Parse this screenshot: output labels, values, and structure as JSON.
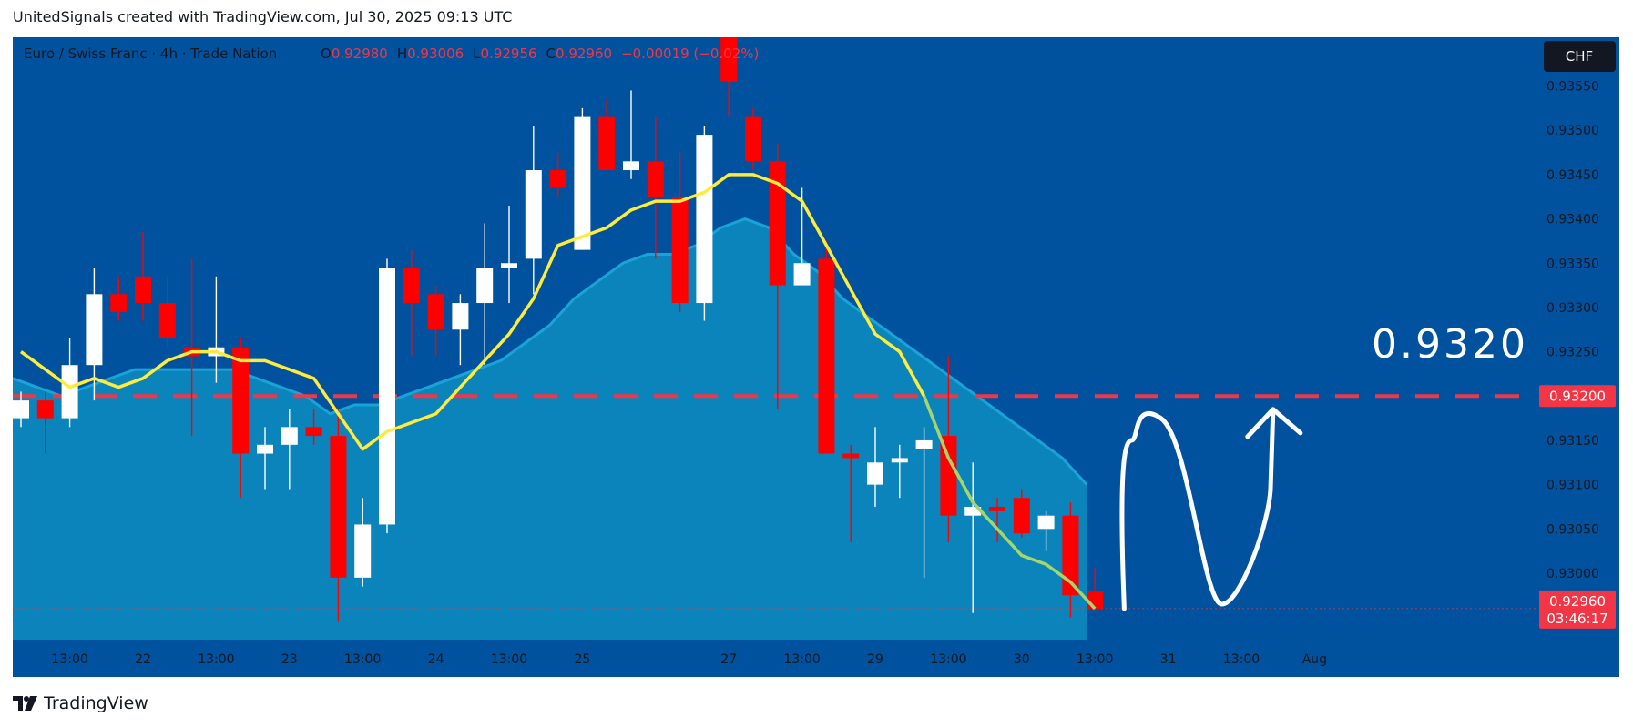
{
  "header": {
    "text": "UnitedSignals created with TradingView.com, Jul 30, 2025 09:13 UTC"
  },
  "footer": {
    "brand": "TradingView",
    "logo_icon": "tradingview-logo-icon"
  },
  "symbol_bar": {
    "title": "Euro / Swiss Franc · 4h · Trade Nation",
    "o_label": "O",
    "o_value": "0.92980",
    "h_label": "H",
    "h_value": "0.93006",
    "l_label": "L",
    "l_value": "0.92956",
    "c_label": "C",
    "c_value": "0.92960",
    "change": "−0.00019 (−0.02%)"
  },
  "currency_badge": "CHF",
  "annotation": {
    "text": "0.9320"
  },
  "price_tags": {
    "level": "0.93200",
    "last": "0.92960",
    "countdown": "03:46:17"
  },
  "colors": {
    "background": "#00529e",
    "up": "#ffffff",
    "down": "#ff0000",
    "ma_fast": "#ffeb3b",
    "ma_fast_tail": "#a5d66b",
    "ma_area": "#0d8cc0",
    "level_line": "#f23645"
  },
  "chart_data": {
    "type": "candlestick",
    "title": "Euro / Swiss Franc · 4h · Trade Nation",
    "y_ticks": [
      0.9355,
      0.935,
      0.9345,
      0.934,
      0.9335,
      0.933,
      0.9325,
      0.932,
      0.9315,
      0.931,
      0.9305,
      0.93
    ],
    "y_tick_labels": [
      "0.93550",
      "0.93500",
      "0.93450",
      "0.93400",
      "0.93350",
      "0.93300",
      "0.93250",
      "0.93200",
      "0.93150",
      "0.93100",
      "0.93050",
      "0.93000"
    ],
    "ylim": [
      0.92925,
      0.93605
    ],
    "x_ticks": [
      {
        "label": "13:00",
        "i": 2
      },
      {
        "label": "22",
        "i": 5
      },
      {
        "label": "13:00",
        "i": 8
      },
      {
        "label": "23",
        "i": 11
      },
      {
        "label": "13:00",
        "i": 14
      },
      {
        "label": "24",
        "i": 17
      },
      {
        "label": "13:00",
        "i": 20
      },
      {
        "label": "25",
        "i": 23
      },
      {
        "label": "27",
        "i": 29
      },
      {
        "label": "13:00",
        "i": 32
      },
      {
        "label": "29",
        "i": 35
      },
      {
        "label": "13:00",
        "i": 38
      },
      {
        "label": "30",
        "i": 41
      },
      {
        "label": "13:00",
        "i": 44
      },
      {
        "label": "31",
        "i": 47
      },
      {
        "label": "13:00",
        "i": 50
      },
      {
        "label": "Aug",
        "i": 53
      }
    ],
    "candles": [
      [
        0.93175,
        0.93205,
        0.93165,
        0.93195
      ],
      [
        0.93195,
        0.93205,
        0.93135,
        0.93175
      ],
      [
        0.93175,
        0.93265,
        0.93165,
        0.93235
      ],
      [
        0.93235,
        0.93345,
        0.93195,
        0.93315
      ],
      [
        0.93315,
        0.93335,
        0.93285,
        0.93295
      ],
      [
        0.93335,
        0.93385,
        0.93285,
        0.93305
      ],
      [
        0.93305,
        0.93335,
        0.93255,
        0.93265
      ],
      [
        0.93255,
        0.93355,
        0.93155,
        0.93245
      ],
      [
        0.93245,
        0.93335,
        0.93215,
        0.93255
      ],
      [
        0.93255,
        0.93265,
        0.93085,
        0.93135
      ],
      [
        0.93135,
        0.93165,
        0.93095,
        0.93145
      ],
      [
        0.93145,
        0.93185,
        0.93095,
        0.93165
      ],
      [
        0.93165,
        0.93185,
        0.93145,
        0.93155
      ],
      [
        0.93155,
        0.93185,
        0.92945,
        0.92995
      ],
      [
        0.92995,
        0.93085,
        0.92985,
        0.93055
      ],
      [
        0.93055,
        0.93355,
        0.93045,
        0.93345
      ],
      [
        0.93345,
        0.93365,
        0.93245,
        0.93305
      ],
      [
        0.93315,
        0.93325,
        0.93245,
        0.93275
      ],
      [
        0.93275,
        0.93315,
        0.93235,
        0.93305
      ],
      [
        0.93305,
        0.93395,
        0.93235,
        0.93345
      ],
      [
        0.93345,
        0.93415,
        0.93305,
        0.9335
      ],
      [
        0.93355,
        0.93505,
        0.93315,
        0.93455
      ],
      [
        0.93455,
        0.93475,
        0.93425,
        0.93435
      ],
      [
        0.93365,
        0.93525,
        0.93365,
        0.93515
      ],
      [
        0.93515,
        0.93535,
        0.93455,
        0.93455
      ],
      [
        0.93455,
        0.93545,
        0.93445,
        0.93465
      ],
      [
        0.93465,
        0.93515,
        0.93355,
        0.93425
      ],
      [
        0.93425,
        0.93475,
        0.93295,
        0.93305
      ],
      [
        0.93305,
        0.93505,
        0.93285,
        0.93495
      ],
      [
        0.93625,
        0.93625,
        0.93515,
        0.93555
      ],
      [
        0.93515,
        0.93525,
        0.93455,
        0.93465
      ],
      [
        0.93465,
        0.93485,
        0.93185,
        0.93325
      ],
      [
        0.93325,
        0.93435,
        0.93325,
        0.9335
      ],
      [
        0.93355,
        0.93375,
        0.93135,
        0.93135
      ],
      [
        0.93135,
        0.93145,
        0.93035,
        0.9313
      ],
      [
        0.931,
        0.93165,
        0.93075,
        0.93125
      ],
      [
        0.93125,
        0.93145,
        0.93085,
        0.9313
      ],
      [
        0.9314,
        0.93165,
        0.92995,
        0.9315
      ],
      [
        0.93155,
        0.93245,
        0.93035,
        0.93065
      ],
      [
        0.93065,
        0.93125,
        0.92955,
        0.93075
      ],
      [
        0.93075,
        0.93085,
        0.93035,
        0.9307
      ],
      [
        0.93085,
        0.93095,
        0.9304,
        0.93045
      ],
      [
        0.9305,
        0.9307,
        0.93025,
        0.93065
      ],
      [
        0.93065,
        0.9308,
        0.9295,
        0.92975
      ],
      [
        0.9298,
        0.93006,
        0.92956,
        0.9296
      ]
    ],
    "ma_fast": [
      0.9325,
      0.9323,
      0.9321,
      0.9322,
      0.9321,
      0.9322,
      0.9324,
      0.9325,
      0.9325,
      0.9324,
      0.9324,
      0.9323,
      0.9322,
      0.9318,
      0.9314,
      0.9316,
      0.9317,
      0.9318,
      0.9321,
      0.9324,
      0.9327,
      0.9331,
      0.9337,
      0.9338,
      0.9339,
      0.9341,
      0.9342,
      0.9342,
      0.9343,
      0.9345,
      0.9345,
      0.9344,
      0.9342,
      0.9337,
      0.9332,
      0.9327,
      0.9325,
      0.932,
      0.9313,
      0.9308,
      0.9305,
      0.9302,
      0.9301,
      0.9299,
      0.9296
    ],
    "ma_area": [
      0.9322,
      0.9321,
      0.932,
      0.9321,
      0.9322,
      0.9323,
      0.9323,
      0.9323,
      0.9323,
      0.9323,
      0.9322,
      0.9321,
      0.932,
      0.9318,
      0.9319,
      0.9319,
      0.932,
      0.9321,
      0.9322,
      0.9323,
      0.9324,
      0.9326,
      0.9328,
      0.9331,
      0.9333,
      0.9335,
      0.9336,
      0.9336,
      0.9337,
      0.9339,
      0.934,
      0.9339,
      0.9336,
      0.9334,
      0.9331,
      0.9329,
      0.9327,
      0.9325,
      0.9323,
      0.9321,
      0.9319,
      0.9317,
      0.9315,
      0.9313,
      0.931
    ],
    "level_line": 0.932,
    "last_price": 0.9296,
    "projection": [
      [
        45.2,
        0.9296
      ],
      [
        45.5,
        0.9315
      ],
      [
        46.7,
        0.93175
      ],
      [
        48.0,
        0.9306
      ],
      [
        49.2,
        0.92965
      ],
      [
        50.3,
        0.9296
      ],
      [
        51.2,
        0.931
      ],
      [
        51.3,
        0.93185
      ]
    ],
    "grid": false,
    "legend": "top-left"
  }
}
